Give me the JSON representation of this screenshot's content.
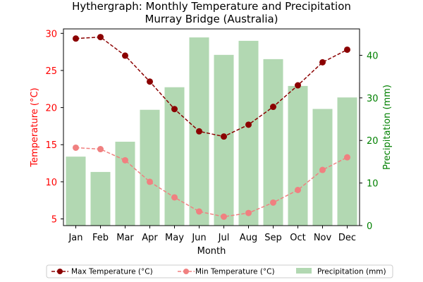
{
  "chart_data": {
    "type": "bar+line",
    "title_line1": "Hythergraph: Monthly Temperature and Precipitation",
    "title_line2": "Murray Bridge (Australia)",
    "xlabel": "Month",
    "ylabel_left": "Temperature (°C)",
    "ylabel_right": "Precipitation (mm)",
    "categories": [
      "Jan",
      "Feb",
      "Mar",
      "Apr",
      "May",
      "Jun",
      "Jul",
      "Aug",
      "Sep",
      "Oct",
      "Nov",
      "Dec"
    ],
    "ylim_left": [
      4.1,
      30.6
    ],
    "yticks_left": [
      5,
      10,
      15,
      20,
      25,
      30
    ],
    "ylim_right": [
      0,
      46.2
    ],
    "yticks_right": [
      0,
      10,
      20,
      30,
      40
    ],
    "grid": false,
    "legend_position": "bottom-center",
    "series": [
      {
        "name": "Max Temperature (°C)",
        "kind": "line",
        "axis": "left",
        "color": "#8b0000",
        "style": "dashed",
        "marker": "circle",
        "values": [
          29.3,
          29.5,
          27.0,
          23.5,
          19.8,
          16.8,
          16.1,
          17.7,
          20.1,
          23.0,
          26.1,
          27.8
        ]
      },
      {
        "name": "Min Temperature (°C)",
        "kind": "line",
        "axis": "left",
        "color": "#f08080",
        "style": "dashed",
        "marker": "circle",
        "values": [
          14.6,
          14.4,
          12.9,
          10.0,
          7.9,
          6.0,
          5.3,
          5.8,
          7.2,
          8.9,
          11.6,
          13.3
        ]
      },
      {
        "name": "Precipitation (mm)",
        "kind": "bar",
        "axis": "right",
        "color": "#b2d8b2",
        "values": [
          16.2,
          12.6,
          19.7,
          27.2,
          32.5,
          44.2,
          40.1,
          43.4,
          39.1,
          32.8,
          27.4,
          30.1
        ]
      }
    ]
  }
}
